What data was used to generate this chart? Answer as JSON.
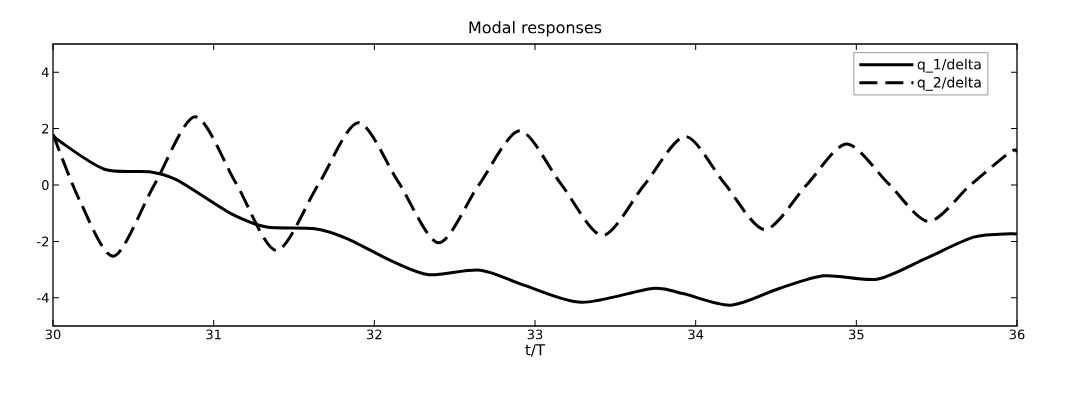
{
  "chart_data": {
    "type": "line",
    "title": "Modal responses",
    "xlabel": "t/T",
    "xlim": [
      30,
      36
    ],
    "ylim": [
      -5,
      5
    ],
    "xticks": [
      30,
      31,
      32,
      33,
      34,
      35,
      36
    ],
    "yticks": [
      -4,
      -2,
      0,
      2,
      4
    ],
    "grid": false,
    "legend": "top right",
    "marker": "none",
    "series": [
      {
        "name": "q_1/delta",
        "color": "#000000",
        "line_style": "solid",
        "x": [
          30,
          30.04,
          30.32,
          30.6,
          30.76,
          30.93,
          31.13,
          31.33,
          31.63,
          31.83,
          32.12,
          32.34,
          32.66,
          32.93,
          33.29,
          33.73,
          33.92,
          34.22,
          34.52,
          34.8,
          35.13,
          35.43,
          35.73,
          35.96,
          36
        ],
        "values": [
          1.8,
          1.56,
          0.56,
          0.47,
          0.21,
          -0.38,
          -1.08,
          -1.49,
          -1.55,
          -1.9,
          -2.73,
          -3.18,
          -3.02,
          -3.55,
          -4.16,
          -3.67,
          -3.85,
          -4.26,
          -3.67,
          -3.22,
          -3.34,
          -2.61,
          -1.85,
          -1.73,
          -1.75
        ]
      },
      {
        "name": "q_2/delta",
        "color": "#000000",
        "line_style": "dashed",
        "x": [
          30,
          30.17,
          30.38,
          30.63,
          30.885,
          31.14,
          31.39,
          31.65,
          31.9,
          32.15,
          32.4,
          32.65,
          32.905,
          33.16,
          33.42,
          33.68,
          33.935,
          34.18,
          34.43,
          34.69,
          34.94,
          35.2,
          35.45,
          35.71,
          35.96,
          36
        ],
        "values": [
          1.8,
          -0.6,
          -2.52,
          0,
          2.42,
          0.05,
          -2.32,
          0,
          2.21,
          0.1,
          -2.05,
          0,
          1.92,
          0.05,
          -1.79,
          0,
          1.72,
          0.05,
          -1.58,
          0,
          1.45,
          0.05,
          -1.29,
          0,
          1.18,
          1.15
        ]
      }
    ]
  }
}
